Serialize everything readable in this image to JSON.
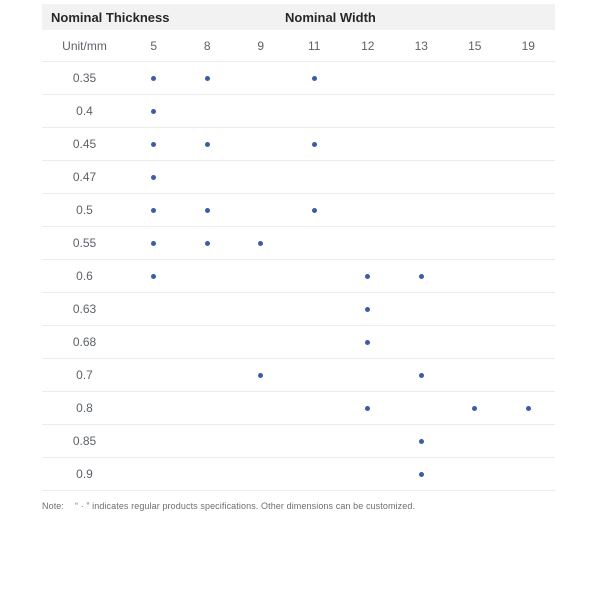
{
  "colors": {
    "dot": "#3a5ca9",
    "header_bg": "#f2f2f3",
    "header_text": "#26282a",
    "body_text": "#5c6269",
    "divider": "#ececec",
    "note_text": "#6f6f6f"
  },
  "table": {
    "header": {
      "thickness_label": "Nominal Thickness",
      "width_label": "Nominal Width"
    },
    "unit_label": "Unit/mm",
    "widths": [
      "5",
      "8",
      "9",
      "11",
      "12",
      "13",
      "15",
      "19"
    ],
    "rows": [
      {
        "thickness": "0.35",
        "marks": [
          1,
          1,
          0,
          1,
          0,
          0,
          0,
          0
        ]
      },
      {
        "thickness": "0.4",
        "marks": [
          1,
          0,
          0,
          0,
          0,
          0,
          0,
          0
        ]
      },
      {
        "thickness": "0.45",
        "marks": [
          1,
          1,
          0,
          1,
          0,
          0,
          0,
          0
        ]
      },
      {
        "thickness": "0.47",
        "marks": [
          1,
          0,
          0,
          0,
          0,
          0,
          0,
          0
        ]
      },
      {
        "thickness": "0.5",
        "marks": [
          1,
          1,
          0,
          1,
          0,
          0,
          0,
          0
        ]
      },
      {
        "thickness": "0.55",
        "marks": [
          1,
          1,
          1,
          0,
          0,
          0,
          0,
          0
        ]
      },
      {
        "thickness": "0.6",
        "marks": [
          1,
          0,
          0,
          0,
          1,
          1,
          0,
          0
        ]
      },
      {
        "thickness": "0.63",
        "marks": [
          0,
          0,
          0,
          0,
          1,
          0,
          0,
          0
        ]
      },
      {
        "thickness": "0.68",
        "marks": [
          0,
          0,
          0,
          0,
          1,
          0,
          0,
          0
        ]
      },
      {
        "thickness": "0.7",
        "marks": [
          0,
          0,
          1,
          0,
          0,
          1,
          0,
          0
        ]
      },
      {
        "thickness": "0.8",
        "marks": [
          0,
          0,
          0,
          0,
          1,
          0,
          1,
          1
        ]
      },
      {
        "thickness": "0.85",
        "marks": [
          0,
          0,
          0,
          0,
          0,
          1,
          0,
          0
        ]
      },
      {
        "thickness": "0.9",
        "marks": [
          0,
          0,
          0,
          0,
          0,
          1,
          0,
          0
        ]
      }
    ]
  },
  "note": {
    "label": "Note:",
    "text": "“ · ” indicates regular products specifications. Other dimensions can be customized."
  }
}
